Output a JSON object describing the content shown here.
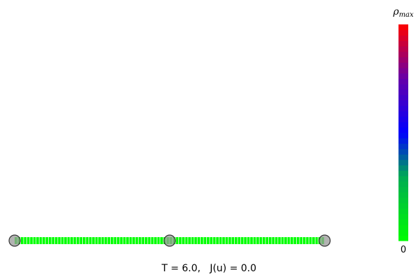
{
  "caption": {
    "time_label": "T",
    "time_value": "6.0",
    "cost_label": "J(u)",
    "cost_value": "0.0",
    "text": "T = 6.0,   J(u) = 0.0"
  },
  "colorbar": {
    "top_label_symbol": "ρ",
    "top_label_subscript": "max",
    "bottom_label": "0",
    "stops": [
      {
        "pos": 0.0,
        "color": "#00ff00"
      },
      {
        "pos": 0.3,
        "color": "#00aa55"
      },
      {
        "pos": 0.5,
        "color": "#0000ff"
      },
      {
        "pos": 0.75,
        "color": "#6600aa"
      },
      {
        "pos": 1.0,
        "color": "#ff0000"
      }
    ],
    "segments": 40
  },
  "network": {
    "nodes": [
      {
        "id": "n0"
      },
      {
        "id": "n1"
      },
      {
        "id": "n2"
      }
    ],
    "edges": [
      {
        "from": "n0",
        "to": "n1",
        "cells": 50,
        "density": 0.0
      },
      {
        "from": "n1",
        "to": "n2",
        "cells": 50,
        "density": 0.0
      }
    ],
    "node_fill": "#9a9a9a",
    "node_stroke": "#333333"
  }
}
